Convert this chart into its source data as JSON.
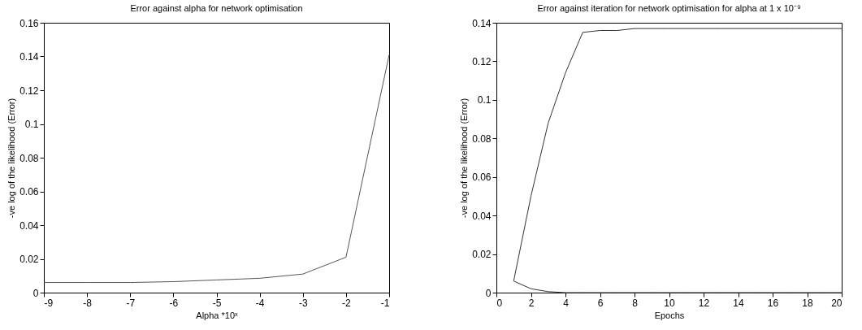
{
  "chart_data": [
    {
      "type": "line",
      "title": "Error against alpha for network optimisation",
      "xlabel": "Alpha *10ˣ",
      "ylabel": "-ve log of the likelihood (Error)",
      "x": [
        -9,
        -8,
        -7,
        -6,
        -5,
        -4,
        -3,
        -2,
        -1
      ],
      "series": [
        {
          "color": "#555555",
          "values": [
            0.006,
            0.006,
            0.006,
            0.0065,
            0.0075,
            0.0085,
            0.011,
            0.021,
            0.141
          ]
        }
      ],
      "xlim": [
        -9,
        -1
      ],
      "xticks": [
        -9,
        -8,
        -7,
        -6,
        -5,
        -4,
        -3,
        -2,
        -1
      ],
      "ylim": [
        0,
        0.16
      ],
      "yticks": [
        0,
        0.02,
        0.04,
        0.06,
        0.08,
        0.1,
        0.12,
        0.14,
        0.16
      ],
      "grid": false
    },
    {
      "type": "line",
      "title": "Error against iteration for network optimisation for alpha at 1 x 10⁻⁹",
      "xlabel": "Epochs",
      "ylabel": "-ve log of the likelihood (Error)",
      "x": [
        1,
        2,
        3,
        4,
        5,
        6,
        7,
        8,
        9,
        10,
        11,
        12,
        13,
        14,
        15,
        16,
        17,
        18,
        19,
        20
      ],
      "series": [
        {
          "color": "#333333",
          "values": [
            0.006,
            0.05,
            0.088,
            0.114,
            0.135,
            0.136,
            0.136,
            0.137,
            0.137,
            0.137,
            0.137,
            0.137,
            0.137,
            0.137,
            0.137,
            0.137,
            0.137,
            0.137,
            0.137,
            0.137
          ]
        },
        {
          "color": "#333333",
          "values": [
            0.006,
            0.002,
            0.0005,
            0,
            0,
            0,
            0,
            0,
            0,
            0,
            0,
            0,
            0,
            0,
            0,
            0,
            0,
            0,
            0,
            0
          ]
        }
      ],
      "xlim": [
        0,
        20
      ],
      "xticks": [
        0,
        2,
        4,
        6,
        8,
        10,
        12,
        14,
        16,
        18,
        20
      ],
      "ylim": [
        0,
        0.14
      ],
      "yticks": [
        0,
        0.02,
        0.04,
        0.06,
        0.08,
        0.1,
        0.12,
        0.14
      ],
      "grid": false
    }
  ]
}
